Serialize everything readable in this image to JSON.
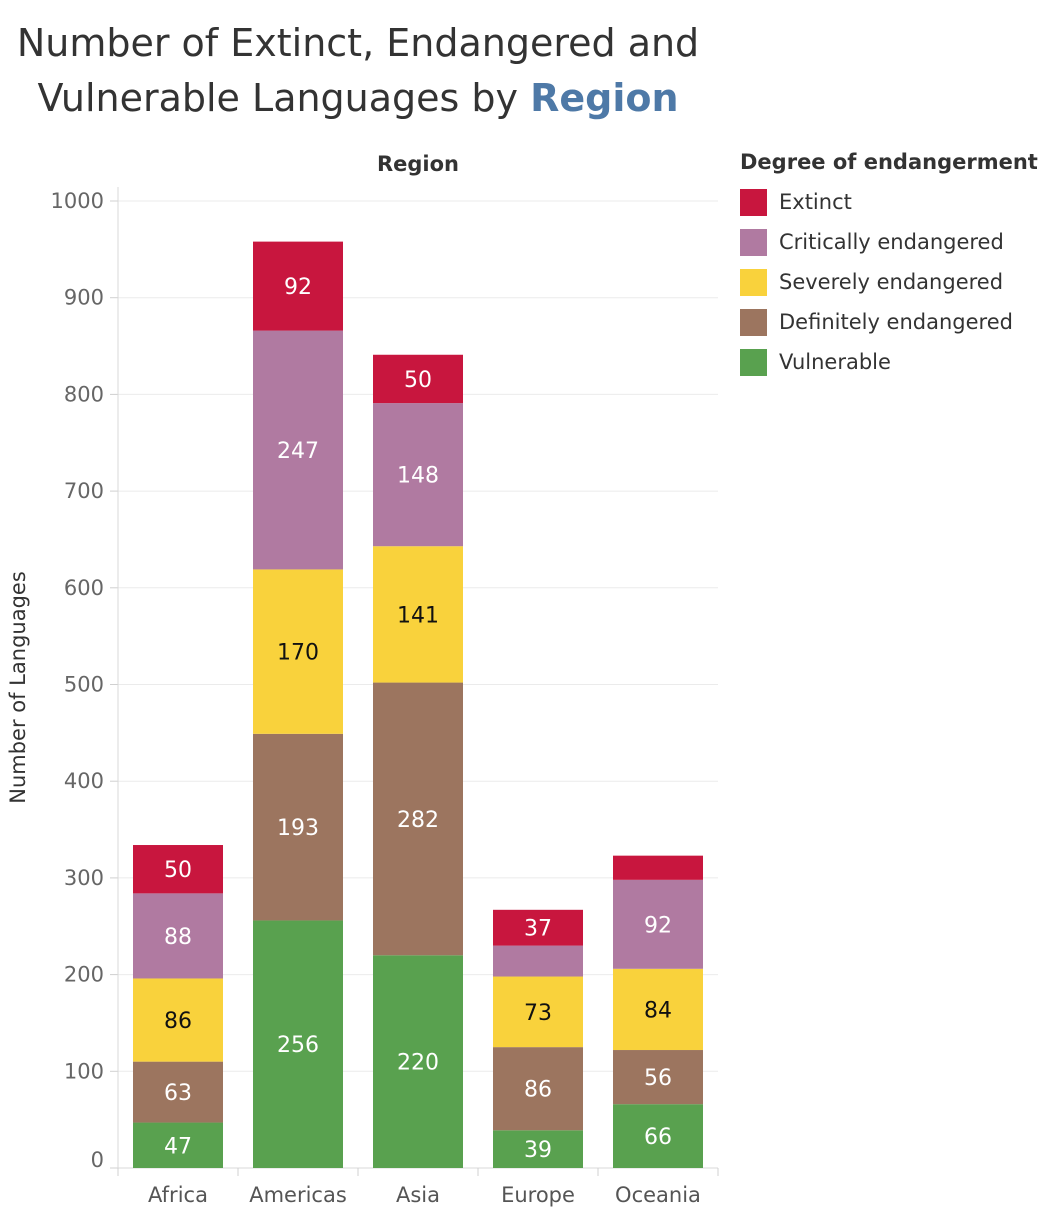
{
  "title": {
    "line1": "Number of Extinct, Endangered and",
    "line2_prefix": "Vulnerable Languages by ",
    "line2_highlight": "Region"
  },
  "legend": {
    "title": "Degree of endangerment",
    "items": [
      {
        "label": "Extinct",
        "color": "#c8163e"
      },
      {
        "label": "Critically endangered",
        "color": "#b07aa1"
      },
      {
        "label": "Severely endangered",
        "color": "#f9d23c"
      },
      {
        "label": "Definitely endangered",
        "color": "#9c755f"
      },
      {
        "label": "Vulnerable",
        "color": "#59a14f"
      }
    ]
  },
  "chart_data": {
    "type": "bar",
    "stacked": true,
    "xlabel": "Region",
    "ylabel": "Number of Languages",
    "ylim": [
      0,
      1000
    ],
    "yticks": [
      0,
      100,
      200,
      300,
      400,
      500,
      600,
      700,
      800,
      900,
      1000
    ],
    "categories": [
      "Africa",
      "Americas",
      "Asia",
      "Europe",
      "Oceania"
    ],
    "series": [
      {
        "name": "Vulnerable",
        "color": "#59a14f",
        "label_color": "#ffffff",
        "values": [
          47,
          256,
          220,
          39,
          66
        ]
      },
      {
        "name": "Definitely endangered",
        "color": "#9c755f",
        "label_color": "#ffffff",
        "values": [
          63,
          193,
          282,
          86,
          56
        ]
      },
      {
        "name": "Severely endangered",
        "color": "#f9d23c",
        "label_color": "#111111",
        "values": [
          86,
          170,
          141,
          73,
          84
        ]
      },
      {
        "name": "Critically endangered",
        "color": "#b07aa1",
        "label_color": "#ffffff",
        "values": [
          88,
          247,
          148,
          32,
          92
        ]
      },
      {
        "name": "Extinct",
        "color": "#c8163e",
        "label_color": "#ffffff",
        "values": [
          50,
          92,
          50,
          37,
          25
        ]
      }
    ],
    "label_shown": [
      [
        true,
        true,
        true,
        true,
        true
      ],
      [
        true,
        true,
        true,
        true,
        true
      ],
      [
        true,
        true,
        true,
        true,
        true
      ],
      [
        true,
        true,
        true,
        false,
        true
      ],
      [
        true,
        true,
        true,
        true,
        false
      ]
    ]
  }
}
